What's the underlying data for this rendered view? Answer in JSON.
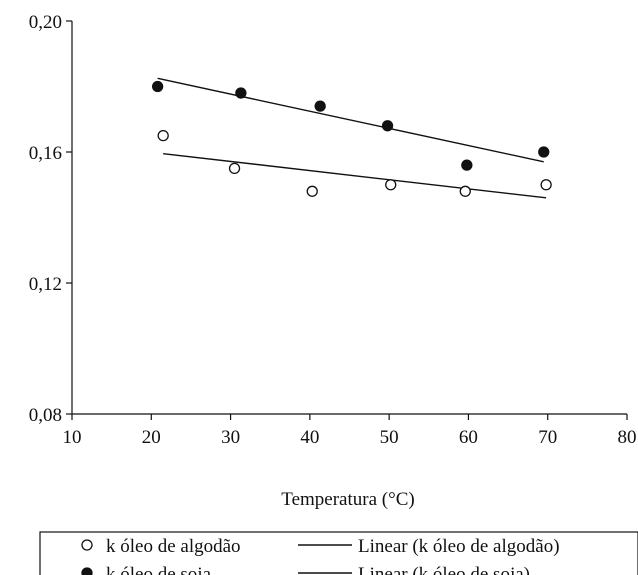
{
  "chart_data": {
    "type": "scatter",
    "xlabel": "Temperatura (°C)",
    "ylabel": "",
    "xlim": [
      10,
      80
    ],
    "ylim": [
      0.08,
      0.2
    ],
    "x_ticks": [
      10,
      20,
      30,
      40,
      50,
      60,
      70,
      80
    ],
    "y_ticks": [
      0.08,
      0.12,
      0.16,
      0.2
    ],
    "x_tick_labels": [
      "10",
      "20",
      "30",
      "40",
      "50",
      "60",
      "70",
      "80"
    ],
    "y_tick_labels": [
      "0,08",
      "0,12",
      "0,16",
      "0,20"
    ],
    "grid": false,
    "legend_position": "bottom",
    "series": [
      {
        "name": "k óleo de algodão",
        "marker": "open-circle",
        "x": [
          21.5,
          30.5,
          40.3,
          50.2,
          59.6,
          69.8
        ],
        "y": [
          0.165,
          0.155,
          0.148,
          0.15,
          0.148,
          0.15
        ]
      },
      {
        "name": "k óleo de soja",
        "marker": "filled-circle",
        "x": [
          20.8,
          31.3,
          41.3,
          49.8,
          59.8,
          69.5
        ],
        "y": [
          0.18,
          0.178,
          0.174,
          0.168,
          0.156,
          0.16
        ]
      }
    ],
    "trendlines": [
      {
        "name": "Linear (k óleo de algodão)",
        "x": [
          21.5,
          69.8
        ],
        "y": [
          0.1595,
          0.146
        ]
      },
      {
        "name": "Linear (k óleo de soja)",
        "x": [
          20.8,
          69.5
        ],
        "y": [
          0.1825,
          0.157
        ]
      }
    ],
    "legend": [
      {
        "label": "k óleo de algodão",
        "symbol": "open-circle"
      },
      {
        "label": "Linear (k óleo de algodão)",
        "symbol": "line"
      },
      {
        "label": "k óleo de soja",
        "symbol": "filled-circle"
      },
      {
        "label": "Linear (k óleo de soja)",
        "symbol": "line"
      }
    ]
  }
}
